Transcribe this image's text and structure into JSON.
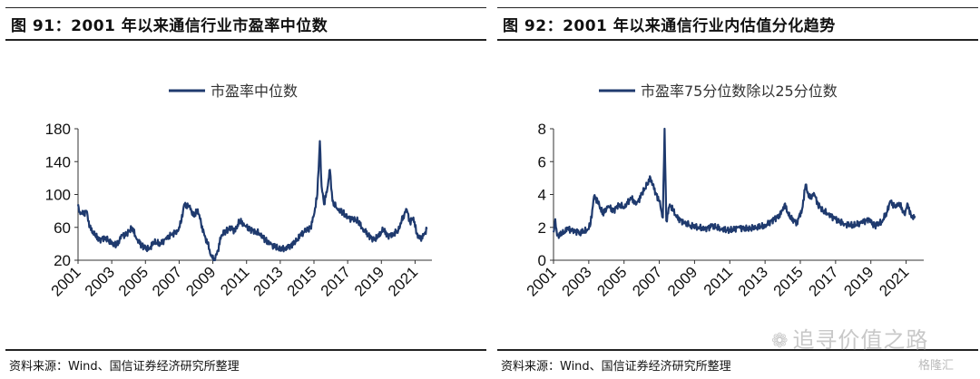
{
  "charts": [
    {
      "title": "图 91：2001 年以来通信行业市盈率中位数",
      "source": "资料来源：Wind、国信证券经济研究所整理"
    },
    {
      "title": "图 92：2001 年以来通信行业内估值分化趋势",
      "source": "资料来源：Wind、国信证券经济研究所整理"
    }
  ],
  "watermark": "追寻价值之路",
  "brand": "格隆汇",
  "chart_data": [
    {
      "type": "line",
      "title": "",
      "legend": "市盈率中位数",
      "legend_position": "top",
      "grid": false,
      "color": "#1f3a6e",
      "ylim": [
        20,
        180
      ],
      "yticks": [
        20,
        60,
        100,
        140,
        180
      ],
      "xlim": [
        2001,
        2022
      ],
      "xticks": [
        "2001",
        "2003",
        "2005",
        "2007",
        "2009",
        "2011",
        "2013",
        "2015",
        "2017",
        "2019",
        "2021"
      ],
      "series": [
        {
          "name": "市盈率中位数",
          "points": [
            [
              2001.0,
              88
            ],
            [
              2001.1,
              79
            ],
            [
              2001.3,
              76
            ],
            [
              2001.5,
              80
            ],
            [
              2001.7,
              60
            ],
            [
              2002.0,
              50
            ],
            [
              2002.3,
              45
            ],
            [
              2002.6,
              48
            ],
            [
              2003.0,
              40
            ],
            [
              2003.3,
              38
            ],
            [
              2003.6,
              50
            ],
            [
              2003.9,
              52
            ],
            [
              2004.2,
              60
            ],
            [
              2004.5,
              45
            ],
            [
              2004.8,
              38
            ],
            [
              2005.2,
              33
            ],
            [
              2005.5,
              42
            ],
            [
              2005.9,
              40
            ],
            [
              2006.2,
              46
            ],
            [
              2006.6,
              52
            ],
            [
              2006.9,
              55
            ],
            [
              2007.1,
              65
            ],
            [
              2007.3,
              88
            ],
            [
              2007.6,
              85
            ],
            [
              2007.9,
              73
            ],
            [
              2008.1,
              82
            ],
            [
              2008.3,
              65
            ],
            [
              2008.5,
              50
            ],
            [
              2008.7,
              40
            ],
            [
              2008.9,
              25
            ],
            [
              2009.1,
              20
            ],
            [
              2009.3,
              32
            ],
            [
              2009.5,
              50
            ],
            [
              2009.8,
              56
            ],
            [
              2010.1,
              60
            ],
            [
              2010.3,
              55
            ],
            [
              2010.6,
              68
            ],
            [
              2010.9,
              62
            ],
            [
              2011.2,
              58
            ],
            [
              2011.5,
              55
            ],
            [
              2011.8,
              52
            ],
            [
              2012.1,
              45
            ],
            [
              2012.4,
              40
            ],
            [
              2012.7,
              36
            ],
            [
              2013.0,
              33
            ],
            [
              2013.3,
              35
            ],
            [
              2013.6,
              38
            ],
            [
              2013.9,
              42
            ],
            [
              2014.2,
              50
            ],
            [
              2014.5,
              56
            ],
            [
              2014.8,
              60
            ],
            [
              2015.0,
              75
            ],
            [
              2015.2,
              100
            ],
            [
              2015.35,
              165
            ],
            [
              2015.45,
              110
            ],
            [
              2015.6,
              88
            ],
            [
              2015.8,
              108
            ],
            [
              2015.95,
              130
            ],
            [
              2016.1,
              92
            ],
            [
              2016.4,
              82
            ],
            [
              2016.7,
              78
            ],
            [
              2017.0,
              72
            ],
            [
              2017.3,
              70
            ],
            [
              2017.6,
              68
            ],
            [
              2017.9,
              58
            ],
            [
              2018.2,
              52
            ],
            [
              2018.5,
              45
            ],
            [
              2018.8,
              48
            ],
            [
              2019.1,
              57
            ],
            [
              2019.4,
              50
            ],
            [
              2019.7,
              52
            ],
            [
              2020.0,
              56
            ],
            [
              2020.2,
              68
            ],
            [
              2020.5,
              82
            ],
            [
              2020.7,
              66
            ],
            [
              2020.9,
              72
            ],
            [
              2021.1,
              52
            ],
            [
              2021.3,
              46
            ],
            [
              2021.5,
              50
            ],
            [
              2021.7,
              58
            ]
          ]
        }
      ]
    },
    {
      "type": "line",
      "title": "",
      "legend": "市盈率75分位数除以25分位数",
      "legend_position": "top",
      "grid": false,
      "color": "#1f3a6e",
      "ylim": [
        0,
        8
      ],
      "yticks": [
        0,
        2,
        4,
        6,
        8
      ],
      "xlim": [
        2001,
        2022
      ],
      "xticks": [
        "2001",
        "2003",
        "2005",
        "2007",
        "2009",
        "2011",
        "2013",
        "2015",
        "2017",
        "2019",
        "2021"
      ],
      "series": [
        {
          "name": "市盈率75分位数除以25分位数",
          "points": [
            [
              2001.0,
              1.7
            ],
            [
              2001.1,
              2.5
            ],
            [
              2001.2,
              1.5
            ],
            [
              2001.5,
              1.6
            ],
            [
              2001.8,
              1.9
            ],
            [
              2002.1,
              1.8
            ],
            [
              2002.5,
              1.7
            ],
            [
              2002.9,
              1.8
            ],
            [
              2003.1,
              2.2
            ],
            [
              2003.3,
              3.9
            ],
            [
              2003.5,
              3.6
            ],
            [
              2003.8,
              2.8
            ],
            [
              2004.1,
              3.3
            ],
            [
              2004.4,
              3.0
            ],
            [
              2004.7,
              3.4
            ],
            [
              2005.0,
              3.2
            ],
            [
              2005.4,
              3.8
            ],
            [
              2005.7,
              3.4
            ],
            [
              2006.0,
              4.0
            ],
            [
              2006.3,
              4.6
            ],
            [
              2006.5,
              5.0
            ],
            [
              2006.8,
              4.1
            ],
            [
              2007.0,
              3.6
            ],
            [
              2007.2,
              2.6
            ],
            [
              2007.3,
              8.0
            ],
            [
              2007.4,
              2.4
            ],
            [
              2007.6,
              3.4
            ],
            [
              2007.8,
              3.0
            ],
            [
              2008.0,
              2.6
            ],
            [
              2008.4,
              2.3
            ],
            [
              2008.8,
              2.1
            ],
            [
              2009.2,
              2.0
            ],
            [
              2009.6,
              1.9
            ],
            [
              2010.0,
              2.1
            ],
            [
              2010.5,
              1.9
            ],
            [
              2011.0,
              1.8
            ],
            [
              2011.5,
              2.0
            ],
            [
              2012.0,
              1.9
            ],
            [
              2012.5,
              2.0
            ],
            [
              2013.0,
              2.1
            ],
            [
              2013.5,
              2.5
            ],
            [
              2013.9,
              2.8
            ],
            [
              2014.1,
              3.4
            ],
            [
              2014.4,
              2.6
            ],
            [
              2014.8,
              2.3
            ],
            [
              2015.1,
              3.1
            ],
            [
              2015.3,
              4.6
            ],
            [
              2015.5,
              3.8
            ],
            [
              2015.8,
              4.0
            ],
            [
              2016.0,
              3.4
            ],
            [
              2016.3,
              3.0
            ],
            [
              2016.6,
              2.8
            ],
            [
              2017.0,
              2.5
            ],
            [
              2017.5,
              2.2
            ],
            [
              2018.0,
              2.1
            ],
            [
              2018.5,
              2.3
            ],
            [
              2018.9,
              2.5
            ],
            [
              2019.2,
              2.1
            ],
            [
              2019.6,
              2.3
            ],
            [
              2019.9,
              2.9
            ],
            [
              2020.1,
              3.6
            ],
            [
              2020.4,
              3.2
            ],
            [
              2020.6,
              3.5
            ],
            [
              2020.9,
              2.8
            ],
            [
              2021.1,
              3.4
            ],
            [
              2021.3,
              2.6
            ],
            [
              2021.5,
              2.7
            ]
          ]
        }
      ]
    }
  ]
}
